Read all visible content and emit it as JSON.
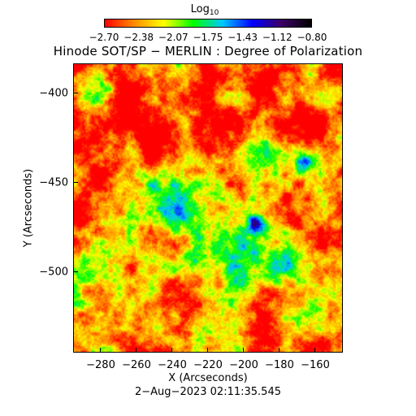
{
  "colorbar": {
    "title_base": "Log",
    "title_sub": "10",
    "ticks": [
      "−2.70",
      "−2.38",
      "−2.07",
      "−1.75",
      "−1.43",
      "−1.12",
      "−0.80"
    ],
    "colors": [
      "#ff0000",
      "#ff8c00",
      "#ffff00",
      "#00ff00",
      "#00c8ff",
      "#0000ff",
      "#3c0064",
      "#000000"
    ]
  },
  "title": "Hinode SOT/SP − MERLIN : Degree of Polarization",
  "axes": {
    "y_label": "Y (Arcseconds)",
    "x_label": "X (Arcseconds)",
    "y_ticks": [
      "−400",
      "−450",
      "−500"
    ],
    "x_ticks": [
      "−280",
      "−260",
      "−240",
      "−220",
      "−200",
      "−180",
      "−160"
    ]
  },
  "timestamp": "2−Aug−2023 02:11:35.545"
}
